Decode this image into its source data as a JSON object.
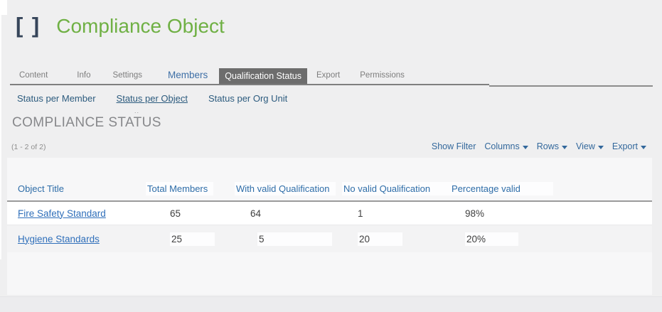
{
  "header": {
    "logo": "[ ]",
    "title": "Compliance Object"
  },
  "tabs": {
    "items": [
      {
        "label": "Content",
        "state": "normal"
      },
      {
        "label": "Info",
        "state": "normal"
      },
      {
        "label": "Settings",
        "state": "normal"
      },
      {
        "label": "Members",
        "state": "emphasized"
      },
      {
        "label": "Qualification Status",
        "state": "selected"
      },
      {
        "label": "Export",
        "state": "normal"
      },
      {
        "label": "Permissions",
        "state": "normal"
      }
    ]
  },
  "subnav": {
    "items": [
      {
        "label": "Status per Member",
        "active": false
      },
      {
        "label": "Status per Object",
        "active": true
      },
      {
        "label": "Status per Org Unit",
        "active": false
      }
    ]
  },
  "section": {
    "title": "COMPLIANCE STATUS",
    "pagination": "(1 - 2 of 2)",
    "artifact": ".."
  },
  "toolbar": {
    "items": [
      {
        "label": "Show Filter",
        "dropdown": false
      },
      {
        "label": "Columns",
        "dropdown": true
      },
      {
        "label": "Rows",
        "dropdown": true
      },
      {
        "label": "View",
        "dropdown": true
      },
      {
        "label": "Export",
        "dropdown": true
      }
    ]
  },
  "table": {
    "columns": [
      "Object Title",
      "Total Members",
      "With valid Qualification",
      "No valid Qualification",
      "Percentage valid"
    ],
    "rows": [
      {
        "title": "Fire Safety Standard",
        "total": "65",
        "valid": "64",
        "invalid": "1",
        "pct": "98%"
      },
      {
        "title": "Hygiene Standards",
        "total": "25",
        "valid": "5",
        "invalid": "20",
        "pct": "20%"
      }
    ]
  },
  "colors": {
    "accent_green": "#6fb044",
    "brand_navy": "#36455a",
    "tab_selected_bg": "#6d6d6d",
    "link_blue": "#2f6fba",
    "header_blue": "#2e6da8",
    "toolbar_blue": "#33689c"
  }
}
